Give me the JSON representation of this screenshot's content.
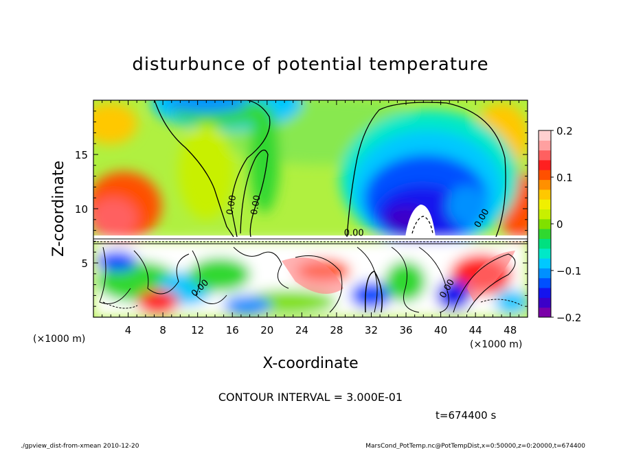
{
  "chart_data": {
    "type": "heatmap",
    "title": "disturbunce of potential temperature",
    "xlabel": "X-coordinate",
    "ylabel": "Z-coordinate",
    "x_unit": "(×1000 m)",
    "x_unit_right": "(×1000 m)",
    "y_unit": "(×1000 m)",
    "xlim": [
      0,
      50
    ],
    "ylim": [
      0,
      20
    ],
    "x_ticks": [
      4,
      8,
      12,
      16,
      20,
      24,
      28,
      32,
      36,
      40,
      44,
      48
    ],
    "y_ticks": [
      5,
      10,
      15
    ],
    "colorbar": {
      "range": [
        -0.2,
        0.2
      ],
      "tick_labels": [
        "0.2",
        "0.1",
        "0",
        "−0.1",
        "−0.2"
      ],
      "tick_values": [
        0.2,
        0.1,
        0,
        -0.1,
        -0.2
      ],
      "colors": [
        "#7a00a8",
        "#3c00c8",
        "#1414ee",
        "#0050ff",
        "#0090ff",
        "#00c8ff",
        "#00e8c8",
        "#00e080",
        "#30d830",
        "#80e000",
        "#c8f000",
        "#f0f000",
        "#ffc800",
        "#ff9000",
        "#ff5000",
        "#ff2020",
        "#ff6060",
        "#ffa0a0",
        "#ffd0d0"
      ]
    },
    "contour_labels": [
      {
        "text": "0.00",
        "x": 16.2,
        "z": 10.3,
        "rotate": -80
      },
      {
        "text": "0.00",
        "x": 19.0,
        "z": 10.3,
        "rotate": -80
      },
      {
        "text": "0.00",
        "x": 30.0,
        "z": 7.5,
        "rotate": 0
      },
      {
        "text": "0.00",
        "x": 45.0,
        "z": 9.0,
        "rotate": -60
      },
      {
        "text": "0.00",
        "x": 12.5,
        "z": 2.5,
        "rotate": -45
      },
      {
        "text": "0.00",
        "x": 41.0,
        "z": 2.5,
        "rotate": -60
      }
    ],
    "grid": false,
    "legend": "colorbar-right"
  },
  "contour_interval": "CONTOUR INTERVAL = 3.000E-01",
  "time_label": "t=674400 s",
  "footer_left": "./gpview_dist-from-xmean  2010-12-20",
  "footer_right": "MarsCond_PotTemp.nc@PotTempDist,x=0:50000,z=0:20000,t=674400"
}
